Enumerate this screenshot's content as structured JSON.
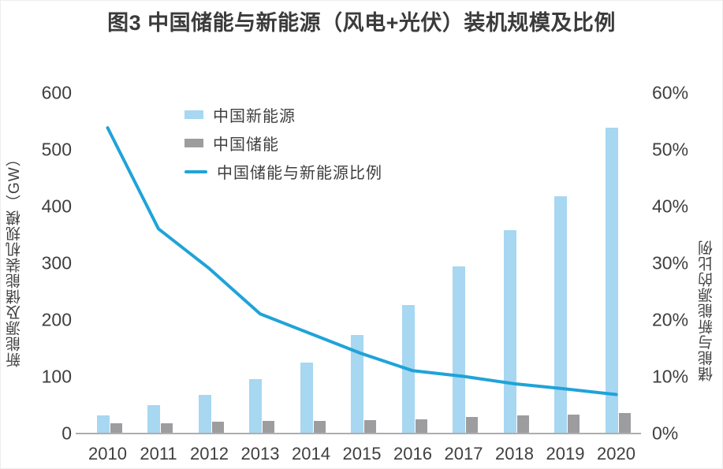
{
  "chart_data": {
    "type": "bar+line combo",
    "title": "图3 中国储能与新能源（风电+光伏）装机规模及比例",
    "categories": [
      "2010",
      "2011",
      "2012",
      "2013",
      "2014",
      "2015",
      "2016",
      "2017",
      "2018",
      "2019",
      "2020"
    ],
    "series": [
      {
        "name": "中国新能源",
        "type": "bar",
        "axis": "left",
        "unit": "GW",
        "color": "#a7d7f1",
        "values": [
          31,
          49,
          68,
          95,
          124,
          173,
          226,
          294,
          358,
          418,
          538
        ]
      },
      {
        "name": "中国储能",
        "type": "bar",
        "axis": "left",
        "unit": "GW",
        "color": "#9d9da0",
        "values": [
          17,
          18,
          20,
          21,
          22,
          23,
          24,
          29,
          31,
          32,
          36
        ]
      },
      {
        "name": "中国储能与新能源比例",
        "type": "line",
        "axis": "right",
        "unit": "%",
        "color": "#20a3d8",
        "values": [
          53.8,
          36,
          29,
          21,
          17.5,
          14,
          11,
          10,
          8.7,
          7.8,
          6.8
        ]
      }
    ],
    "left_axis": {
      "label": "新能源及储能装机规模（GW）",
      "min": 0,
      "max": 600,
      "ticks": [
        "0",
        "100",
        "200",
        "300",
        "400",
        "500",
        "600"
      ]
    },
    "right_axis": {
      "label": "储能与新能源的比例",
      "min": 0,
      "max": 60,
      "ticks": [
        "0%",
        "10%",
        "20%",
        "30%",
        "40%",
        "50%",
        "60%"
      ]
    },
    "legend_position": "top-left-inside",
    "grid": false
  }
}
